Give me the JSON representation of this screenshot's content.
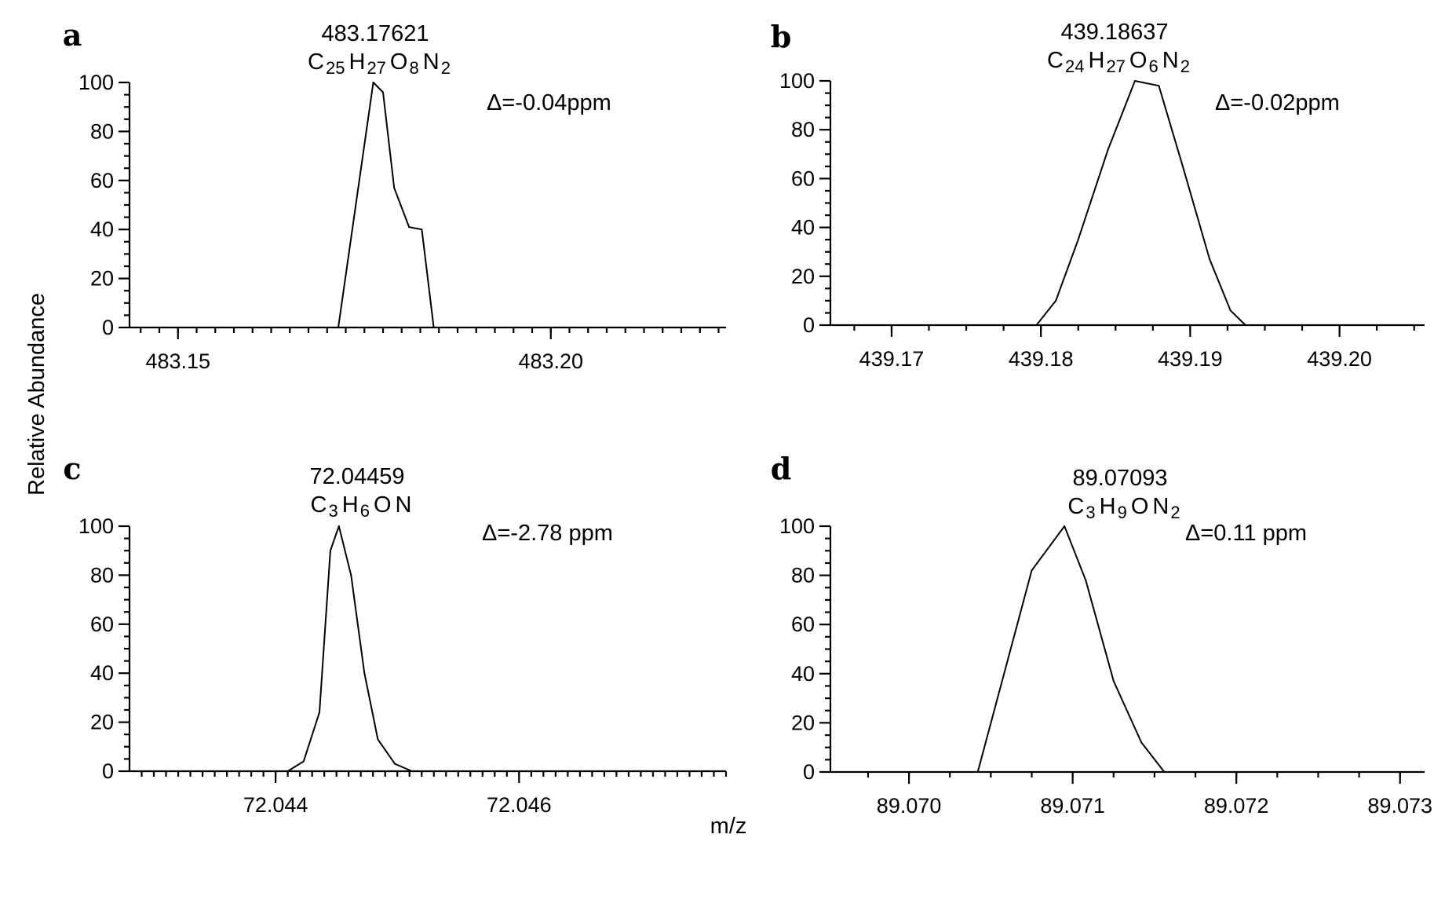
{
  "figure": {
    "ylabel": "Relative  Abundance",
    "xlabel": "m/z"
  },
  "chart_data": [
    {
      "type": "line",
      "panel": "a",
      "peak_mass": "483.17621",
      "formula": [
        [
          "C",
          "25"
        ],
        [
          "H",
          "27"
        ],
        [
          "O",
          "8"
        ],
        [
          "N",
          "2"
        ]
      ],
      "delta": "Δ=-0.04ppm",
      "xlim": [
        483.1435,
        483.2235
      ],
      "ylim": [
        0,
        100
      ],
      "yticks": [
        "0",
        "20",
        "40",
        "60",
        "80",
        "100"
      ],
      "xtick_values": [
        483.15,
        483.2
      ],
      "xtick_labels": [
        "483.15",
        "483.20"
      ],
      "minor_step": 0.0025,
      "x": [
        483.1715,
        483.1762,
        483.1775,
        483.179,
        483.181,
        483.1827,
        483.1843
      ],
      "y": [
        0,
        100,
        96,
        57,
        41,
        40,
        0
      ]
    },
    {
      "type": "line",
      "panel": "b",
      "peak_mass": "439.18637",
      "formula": [
        [
          "C",
          "24"
        ],
        [
          "H",
          "27"
        ],
        [
          "O",
          "6"
        ],
        [
          "N",
          "2"
        ]
      ],
      "delta": "Δ=-0.02ppm",
      "xlim": [
        439.1659,
        439.2057
      ],
      "ylim": [
        0,
        100
      ],
      "yticks": [
        "0",
        "20",
        "40",
        "60",
        "80",
        "100"
      ],
      "xtick_values": [
        439.17,
        439.18,
        439.19,
        439.2
      ],
      "xtick_labels": [
        "439.17",
        "439.18",
        "439.19",
        "439.20"
      ],
      "minor_step": 0.0025,
      "x": [
        439.1797,
        439.181,
        439.1825,
        439.1845,
        439.1863,
        439.1879,
        439.1895,
        439.1913,
        439.1927,
        439.1937
      ],
      "y": [
        0,
        10,
        35,
        72,
        100,
        98,
        65,
        27,
        6,
        0
      ]
    },
    {
      "type": "line",
      "panel": "c",
      "peak_mass": "72.04459",
      "formula": [
        [
          "C",
          "3"
        ],
        [
          "H",
          "6"
        ],
        [
          "O",
          ""
        ],
        [
          "N",
          ""
        ]
      ],
      "delta": "Δ=-2.78 ppm",
      "xlim": [
        72.0428,
        72.0477
      ],
      "ylim": [
        0,
        100
      ],
      "yticks": [
        "0",
        "20",
        "40",
        "60",
        "80",
        "100"
      ],
      "xtick_values": [
        72.044,
        72.046
      ],
      "xtick_labels": [
        "72.044",
        "72.046"
      ],
      "minor_step": 0.0001,
      "x": [
        72.0441,
        72.04423,
        72.04436,
        72.04445,
        72.04452,
        72.04462,
        72.04473,
        72.04484,
        72.04498,
        72.04512
      ],
      "y": [
        0,
        4,
        24,
        90,
        100,
        80,
        40,
        13,
        3,
        0
      ]
    },
    {
      "type": "line",
      "panel": "d",
      "peak_mass": "89.07093",
      "formula": [
        [
          "C",
          "3"
        ],
        [
          "H",
          "9"
        ],
        [
          "O",
          ""
        ],
        [
          "N",
          "2"
        ]
      ],
      "delta": "Δ=0.11 ppm",
      "xlim": [
        89.06952,
        89.07315
      ],
      "ylim": [
        0,
        100
      ],
      "yticks": [
        "0",
        "20",
        "40",
        "60",
        "80",
        "100"
      ],
      "xtick_values": [
        89.07,
        89.071,
        89.072,
        89.073
      ],
      "xtick_labels": [
        "89.070",
        "89.071",
        "89.072",
        "89.073"
      ],
      "minor_step": 0.00025,
      "x": [
        89.07042,
        89.07075,
        89.07095,
        89.07108,
        89.07125,
        89.07142,
        89.07156
      ],
      "y": [
        0,
        82,
        100,
        78,
        37,
        12,
        0
      ]
    }
  ]
}
